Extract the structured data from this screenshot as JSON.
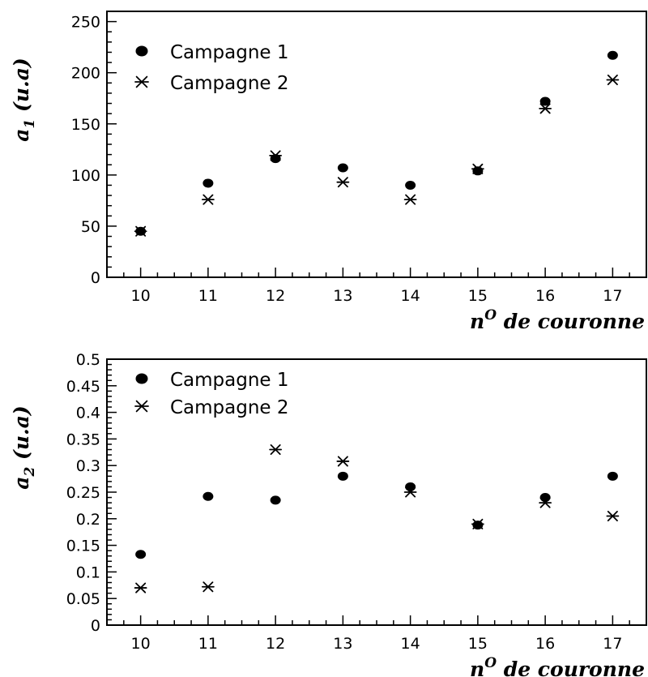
{
  "chart_data": [
    {
      "type": "scatter",
      "title": "",
      "xlabel": {
        "main": "n",
        "sup": "O",
        "rest": " de couronne"
      },
      "ylabel": {
        "main": "a",
        "sub": "1",
        "rest": " (u.a)"
      },
      "categories": [
        "10",
        "11",
        "12",
        "13",
        "14",
        "15",
        "16",
        "17"
      ],
      "x": [
        10,
        11,
        12,
        13,
        14,
        15,
        16,
        17
      ],
      "xlim": [
        9.5,
        17.5
      ],
      "ylim": [
        0,
        260
      ],
      "yticks": [
        0,
        50,
        100,
        150,
        200,
        250
      ],
      "ytick_labels": [
        "0",
        "50",
        "100",
        "150",
        "200",
        "250"
      ],
      "legend_position": "top-left",
      "series": [
        {
          "name": "Campagne 1",
          "marker": "filled-circle",
          "values": [
            45,
            92,
            116,
            107,
            90,
            104,
            172,
            217
          ]
        },
        {
          "name": "Campagne 2",
          "marker": "asterisk",
          "values": [
            45,
            76,
            119,
            93,
            76,
            106,
            165,
            193
          ]
        }
      ]
    },
    {
      "type": "scatter",
      "title": "",
      "xlabel": {
        "main": "n",
        "sup": "O",
        "rest": " de couronne"
      },
      "ylabel": {
        "main": "a",
        "sub": "2",
        "rest": " (u.a)"
      },
      "categories": [
        "10",
        "11",
        "12",
        "13",
        "14",
        "15",
        "16",
        "17"
      ],
      "x": [
        10,
        11,
        12,
        13,
        14,
        15,
        16,
        17
      ],
      "xlim": [
        9.5,
        17.5
      ],
      "ylim": [
        0,
        0.5
      ],
      "yticks": [
        0,
        0.05,
        0.1,
        0.15,
        0.2,
        0.25,
        0.3,
        0.35,
        0.4,
        0.45,
        0.5
      ],
      "ytick_labels": [
        "0",
        "0.05",
        "0.1",
        "0.15",
        "0.2",
        "0.25",
        "0.3",
        "0.35",
        "0.4",
        "0.45",
        "0.5"
      ],
      "legend_position": "top-left",
      "series": [
        {
          "name": "Campagne 1",
          "marker": "filled-circle",
          "values": [
            0.133,
            0.242,
            0.235,
            0.28,
            0.26,
            0.188,
            0.24,
            0.28
          ]
        },
        {
          "name": "Campagne 2",
          "marker": "asterisk",
          "values": [
            0.07,
            0.072,
            0.33,
            0.308,
            0.25,
            0.19,
            0.23,
            0.205
          ]
        }
      ]
    }
  ]
}
